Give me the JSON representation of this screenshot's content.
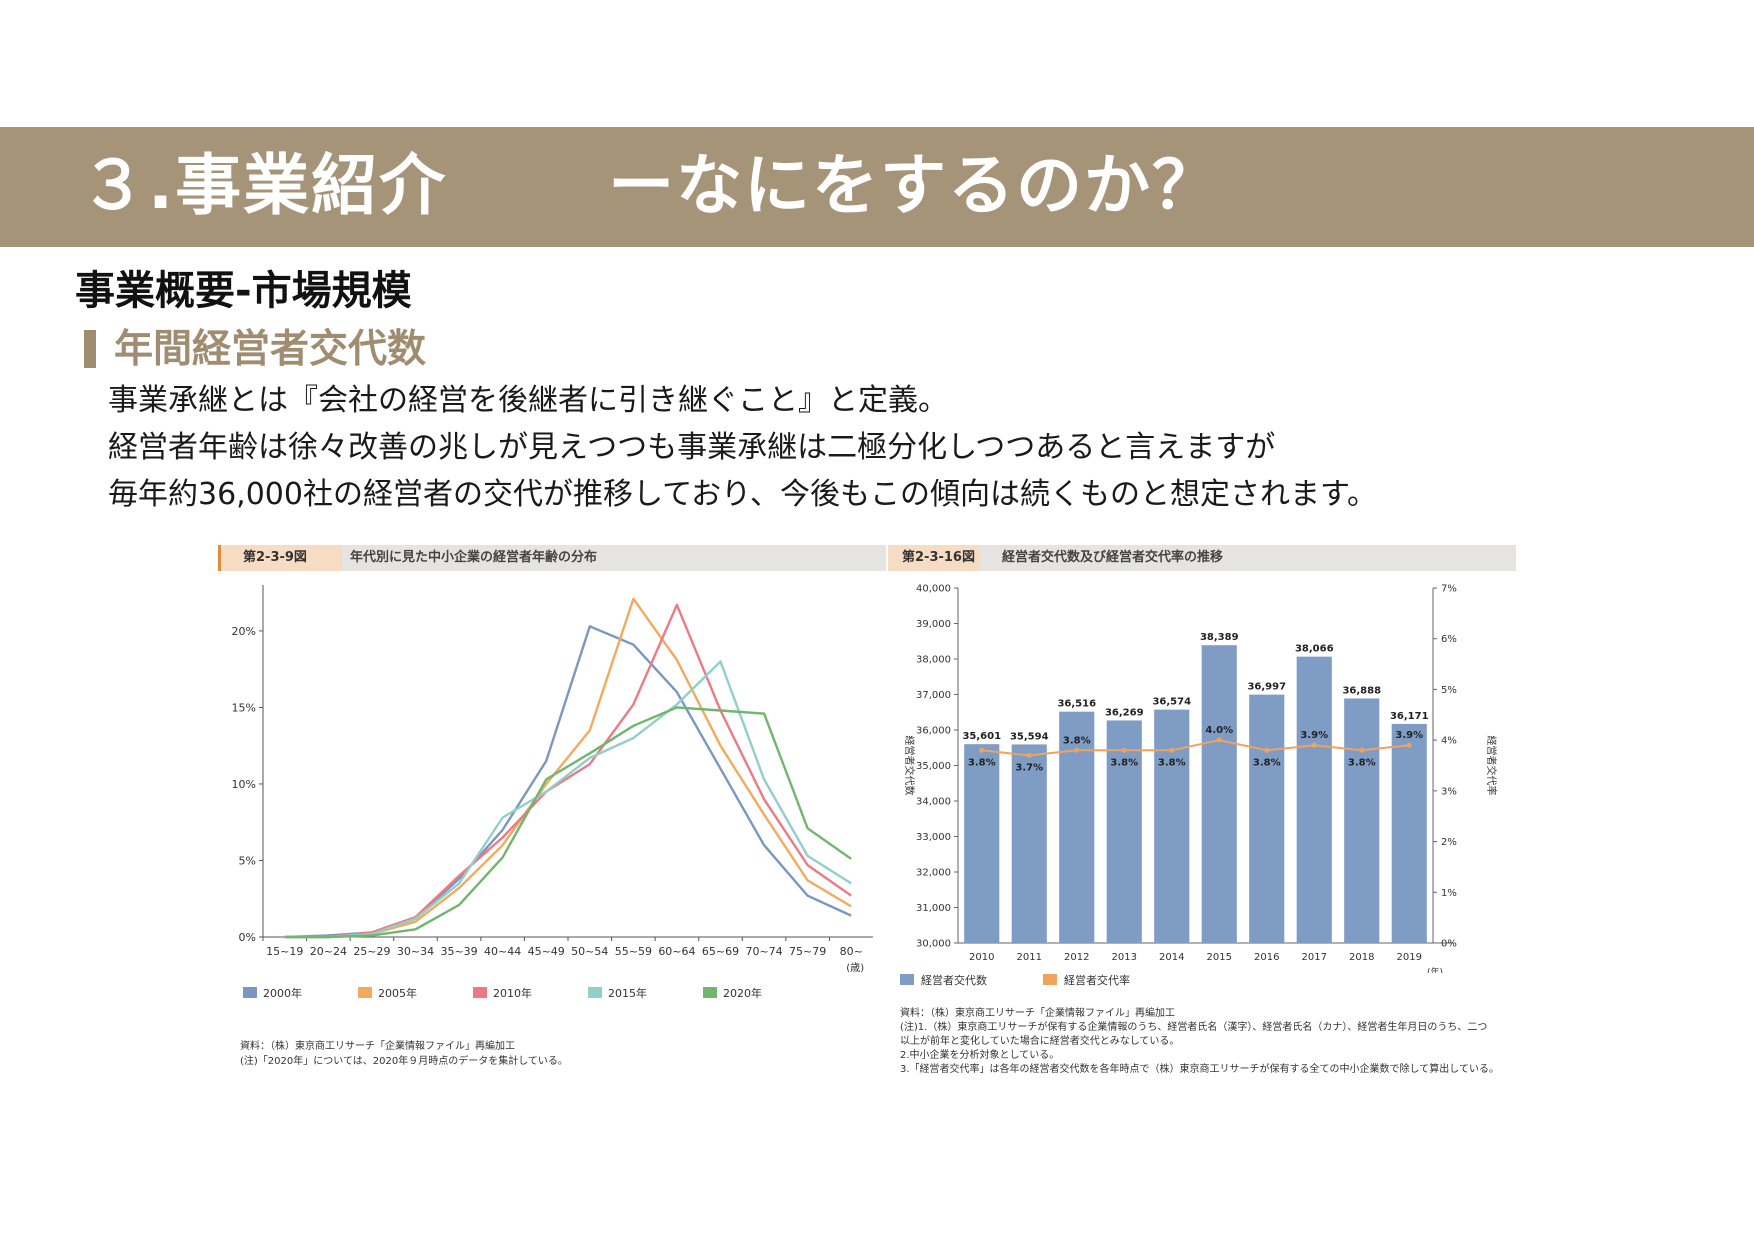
{
  "title": {
    "left": "３.事業紹介",
    "right": "ーなにをするのか？"
  },
  "heading": "事業概要-市場規模",
  "sub_heading": "年間経営者交代数",
  "body": [
    "事業承継とは『会社の経営を後継者に引き継ぐこと』と定義。",
    "経営者年齢は徐々改善の兆しが見えつつも事業承継は二極分化しつつあると言えますが",
    "毎年約36,000社の経営者の交代が推移しており、今後もこの傾向は続くものと想定されます。"
  ],
  "left_figure": {
    "number": "第2-3-9図",
    "title": "年代別に見た中小企業の経営者年齢の分布",
    "x_unit": "(歳)",
    "source": [
      "資料：（株）東京商工リサーチ「企業情報ファイル」再編加工",
      "(注)「2020年」については、2020年９月時点のデータを集計している。"
    ]
  },
  "right_figure": {
    "number": "第2-3-16図",
    "title": "経営者交代数及び経営者交代率の推移",
    "x_unit": "(年)",
    "legend": [
      "経営者交代数",
      "経営者交代率"
    ],
    "source": [
      "資料：（株）東京商工リサーチ「企業情報ファイル」再編加工",
      "(注)1.（株）東京商工リサーチが保有する企業情報のうち、経営者氏名（漢字）、経営者氏名（カナ）、経営者生年月日のうち、二つ",
      "以上が前年と変化していた場合に経営者交代とみなしている。",
      "2.中小企業を分析対象としている。",
      "3.「経営者交代率」は各年の経営者交代数を各年時点で（株）東京商工リサーチが保有する全ての中小企業数で除して算出している。"
    ]
  },
  "colors": {
    "bar": "#7f9dc4",
    "rate": "#f0a35e",
    "header_bar": "#a69478"
  },
  "chart_data": [
    {
      "type": "line",
      "categories": [
        "15~19",
        "20~24",
        "25~29",
        "30~34",
        "35~39",
        "40~44",
        "45~49",
        "50~54",
        "55~59",
        "60~64",
        "65~69",
        "70~74",
        "75~79",
        "80~"
      ],
      "ylim": [
        0,
        23
      ],
      "yticks": [
        "0%",
        "5%",
        "10%",
        "15%",
        "20%"
      ],
      "grid": false,
      "legend_position": "bottom",
      "series": [
        {
          "name": "2000年",
          "color": "#7b97c1",
          "values": [
            0.0,
            0.1,
            0.3,
            1.2,
            3.8,
            7.0,
            11.5,
            20.3,
            19.1,
            16.0,
            11.0,
            6.0,
            2.7,
            1.4
          ]
        },
        {
          "name": "2005年",
          "color": "#f2aa5c",
          "values": [
            0.0,
            0.0,
            0.2,
            1.0,
            3.2,
            6.0,
            10.0,
            13.5,
            22.1,
            18.1,
            12.5,
            8.0,
            3.7,
            2.0
          ]
        },
        {
          "name": "2010年",
          "color": "#ec7a84",
          "values": [
            0.0,
            0.0,
            0.3,
            1.3,
            4.0,
            6.5,
            9.5,
            11.3,
            15.2,
            21.7,
            14.8,
            9.0,
            4.7,
            2.7
          ]
        },
        {
          "name": "2015年",
          "color": "#92cfca",
          "values": [
            0.0,
            0.0,
            0.2,
            1.2,
            3.5,
            7.8,
            9.5,
            11.7,
            13.0,
            15.2,
            18.0,
            10.3,
            5.3,
            3.5
          ]
        },
        {
          "name": "2020年",
          "color": "#72b56e",
          "values": [
            0.0,
            0.0,
            0.1,
            0.5,
            2.1,
            5.2,
            10.3,
            12.0,
            13.8,
            15.0,
            14.8,
            14.6,
            7.1,
            5.1
          ]
        }
      ]
    },
    {
      "type": "bar",
      "categories": [
        "2010",
        "2011",
        "2012",
        "2013",
        "2014",
        "2015",
        "2016",
        "2017",
        "2018",
        "2019"
      ],
      "ylim": [
        30000,
        40000
      ],
      "yticks": [
        "30,000",
        "31,000",
        "32,000",
        "33,000",
        "34,000",
        "35,000",
        "36,000",
        "37,000",
        "38,000",
        "39,000",
        "40,000"
      ],
      "ylabel": "経営者交代数",
      "y2lim": [
        0,
        7
      ],
      "y2ticks": [
        "0%",
        "1%",
        "2%",
        "3%",
        "4%",
        "5%",
        "6%",
        "7%"
      ],
      "y2label": "経営者交代率",
      "series": [
        {
          "name": "経営者交代数",
          "values": [
            35601,
            35594,
            36516,
            36269,
            36574,
            38389,
            36997,
            38066,
            36888,
            36171
          ],
          "labels": [
            "35,601",
            "35,594",
            "36,516",
            "36,269",
            "36,574",
            "38,389",
            "36,997",
            "38,066",
            "36,888",
            "36,171"
          ]
        },
        {
          "name": "経営者交代率",
          "values": [
            3.8,
            3.7,
            3.8,
            3.8,
            3.8,
            4.0,
            3.8,
            3.9,
            3.8,
            3.9
          ],
          "labels": [
            "3.8%",
            "3.7%",
            "3.8%",
            "3.8%",
            "3.8%",
            "4.0%",
            "3.8%",
            "3.9%",
            "3.8%",
            "3.9%"
          ]
        }
      ]
    }
  ]
}
